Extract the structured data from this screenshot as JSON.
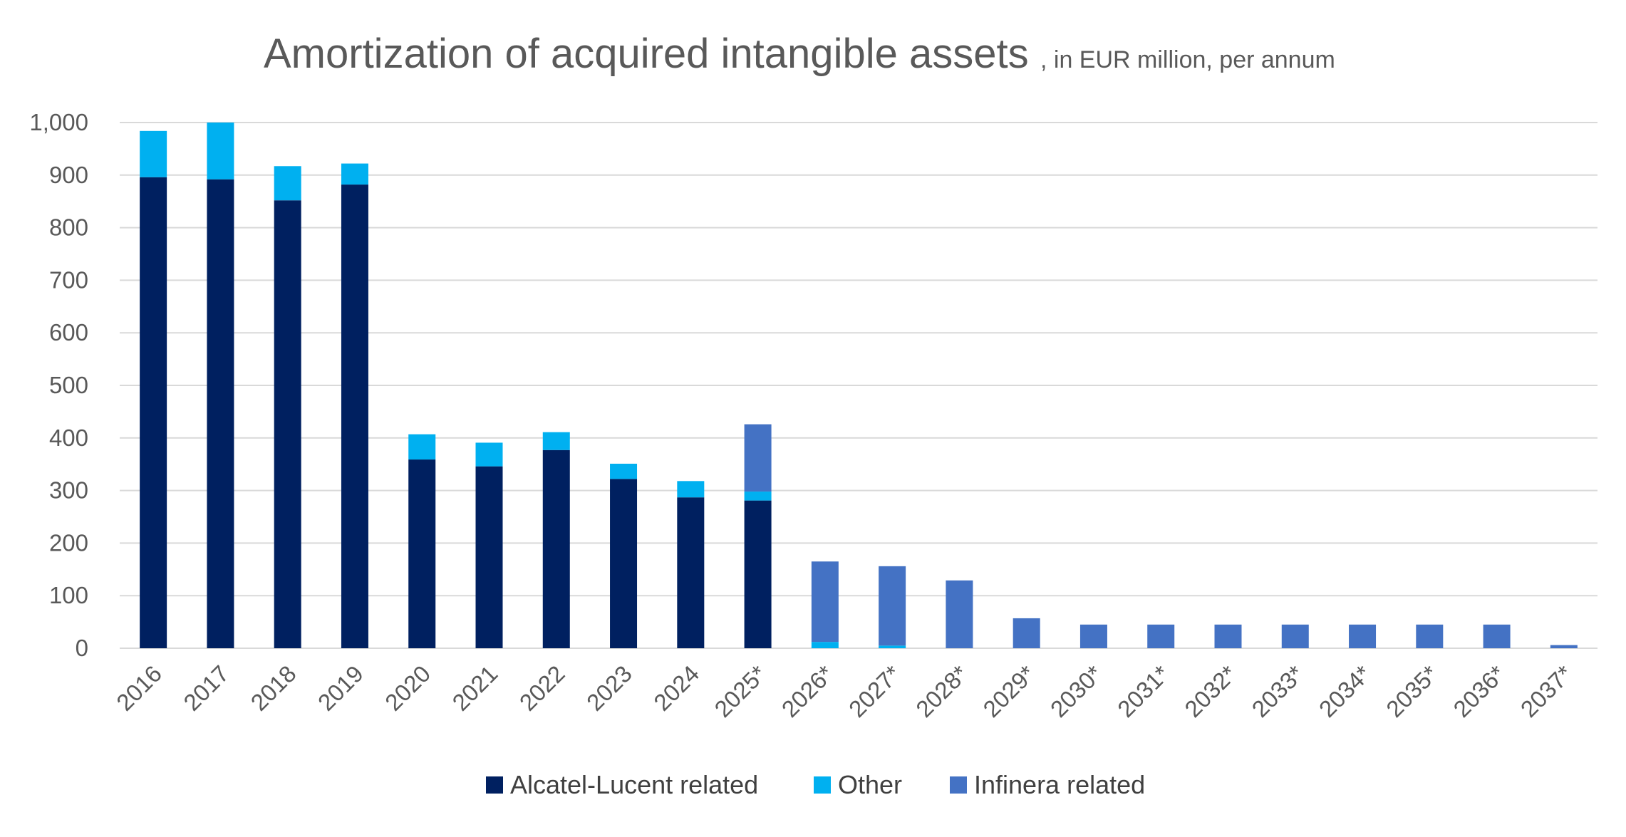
{
  "chart_data": {
    "type": "bar",
    "stacked": true,
    "title": "Amortization of acquired intangible assets",
    "subtitle": ", in EUR million, per annum",
    "xlabel": "",
    "ylabel": "",
    "ylim": [
      0,
      1000
    ],
    "yticks": [
      "0",
      "100",
      "200",
      "300",
      "400",
      "500",
      "600",
      "700",
      "800",
      "900",
      "1,000"
    ],
    "grid": true,
    "legend_position": "bottom",
    "categories": [
      "2016",
      "2017",
      "2018",
      "2019",
      "2020",
      "2021",
      "2022",
      "2023",
      "2024",
      "2025*",
      "2026*",
      "2027*",
      "2028*",
      "2029*",
      "2030*",
      "2031*",
      "2032*",
      "2033*",
      "2034*",
      "2035*",
      "2036*",
      "2037*"
    ],
    "series": [
      {
        "name": "Alcatel-Lucent related",
        "color": "#002060",
        "values": [
          896,
          892,
          852,
          882,
          359,
          346,
          377,
          322,
          287,
          281,
          0,
          0,
          0,
          0,
          0,
          0,
          0,
          0,
          0,
          0,
          0,
          0
        ]
      },
      {
        "name": "Other",
        "color": "#00b0f0",
        "values": [
          88,
          108,
          65,
          40,
          48,
          45,
          34,
          29,
          31,
          17,
          12,
          5,
          0,
          0,
          0,
          0,
          0,
          0,
          0,
          0,
          0,
          0
        ]
      },
      {
        "name": "Infinera related",
        "color": "#4472c4",
        "values": [
          0,
          0,
          0,
          0,
          0,
          0,
          0,
          0,
          0,
          128,
          153,
          151,
          129,
          57,
          45,
          45,
          45,
          45,
          45,
          45,
          45,
          6
        ]
      }
    ]
  }
}
